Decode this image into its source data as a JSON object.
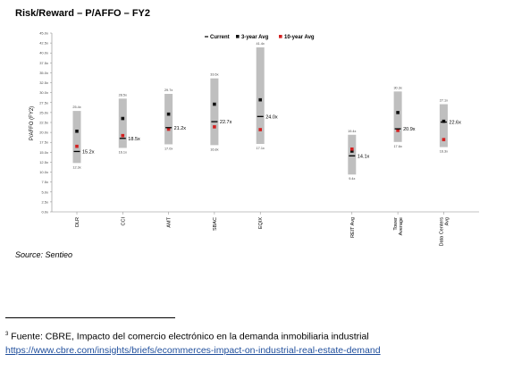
{
  "header": {
    "title": "Risk/Reward – P/AFFO – FY2"
  },
  "chart_data": {
    "type": "range_marker",
    "ylabel": "P/AFFO (FY2)",
    "ylim": [
      0,
      45
    ],
    "ytick_labels": [
      "0.0x",
      "2.5x",
      "5.0x",
      "7.5x",
      "10.0x",
      "12.5x",
      "15.0x",
      "17.5x",
      "20.0x",
      "22.5x",
      "25.0x",
      "27.5x",
      "30.0x",
      "32.5x",
      "35.0x",
      "37.5x",
      "40.0x",
      "42.5x",
      "45.0x"
    ],
    "categories": [
      "DLR",
      "CCI",
      "AMT",
      "SBAC",
      "EQIX",
      "REIT Avg",
      "Tower Average",
      "Data Centers Avg"
    ],
    "positions": [
      0,
      1,
      2,
      3,
      4,
      6,
      7,
      8
    ],
    "legend": [
      "Current",
      "3-year Avg",
      "10-year Avg"
    ],
    "legend_position": "top",
    "high": [
      25.4,
      28.5,
      29.7,
      33.6,
      41.4,
      19.4,
      30.3,
      27.1
    ],
    "low": [
      12.3,
      16.1,
      17.0,
      16.8,
      17.1,
      9.4,
      17.6,
      16.3
    ],
    "high_labels": [
      "25.4x",
      "28.5x",
      "29.7x",
      "33.6x",
      "41.4x",
      "19.4x",
      "30.3x",
      "27.1x"
    ],
    "low_labels": [
      "12.3x",
      "16.1x",
      "17.0x",
      "16.8x",
      "17.1x",
      "9.4x",
      "17.6x",
      "16.3x"
    ],
    "current": [
      15.2,
      18.5,
      21.2,
      22.7,
      24.0,
      14.1,
      20.9,
      22.6
    ],
    "current_labels": [
      "15.2x",
      "18.5x",
      "21.2x",
      "22.7x",
      "24.0x",
      "14.1x",
      "20.9x",
      "22.6x"
    ],
    "three_year_avg": [
      20.3,
      23.5,
      24.6,
      27.1,
      28.2,
      15.3,
      25.0,
      22.8
    ],
    "ten_year_avg": [
      16.5,
      19.2,
      20.8,
      21.4,
      20.7,
      15.8,
      20.5,
      18.2
    ],
    "colors": {
      "range": "#bfbfbf",
      "current": "#000000",
      "three_year_avg": "#111111",
      "ten_year_avg": "#d22020",
      "axis": "#888888"
    }
  },
  "source": "Source: Sentieo",
  "footnote": {
    "marker": "3",
    "text": " Fuente: CBRE, Impacto del comercio electrónico en la demanda inmobiliaria industrial",
    "link": "https://www.cbre.com/insights/briefs/ecommerces-impact-on-industrial-real-estate-demand"
  }
}
